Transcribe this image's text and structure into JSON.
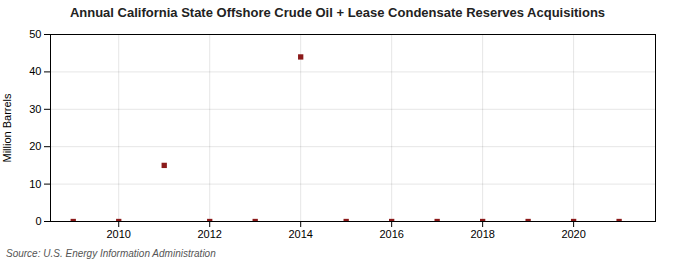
{
  "chart_data": {
    "type": "scatter",
    "title": "Annual California State Offshore Crude Oil + Lease Condensate Reserves Acquisitions",
    "ylabel": "Million Barrels",
    "source": "Source: U.S. Energy Information Administration",
    "x": [
      2009,
      2010,
      2011,
      2012,
      2013,
      2014,
      2015,
      2016,
      2017,
      2018,
      2019,
      2020,
      2021
    ],
    "values": [
      0,
      0,
      15,
      0,
      0,
      44,
      0,
      0,
      0,
      0,
      0,
      0,
      0
    ],
    "color": "#8b1a1a",
    "marker": "square",
    "xlim": [
      2008.5,
      2021.8
    ],
    "xticks": [
      2010,
      2012,
      2014,
      2016,
      2018,
      2020
    ],
    "ylim": [
      0,
      50
    ],
    "yticks": [
      0,
      10,
      20,
      30,
      40,
      50
    ],
    "grid": true
  }
}
